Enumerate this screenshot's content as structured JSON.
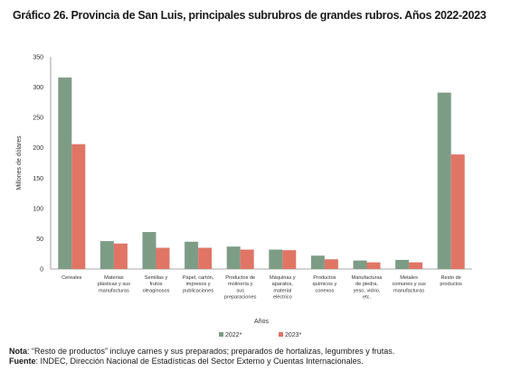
{
  "chart_data": {
    "type": "bar",
    "title": "Gráfico 26. Provincia de San Luis, principales subrubros de grandes rubros. Años 2022-2023",
    "xlabel": "Años",
    "ylabel": "Millones de dólares",
    "ylim": [
      0,
      350
    ],
    "yticks": [
      "0",
      "50",
      "100",
      "150",
      "200",
      "250",
      "300",
      "350"
    ],
    "grid": false,
    "legend_position": "bottom",
    "categories": [
      [
        "Cereales"
      ],
      [
        "Materias",
        "plásticas y sus",
        "manufacturas"
      ],
      [
        "Semillas y",
        "frutos",
        "oleaginosos"
      ],
      [
        "Papel, cartón,",
        "impresos y",
        "publicaciones"
      ],
      [
        "Productos de",
        "molinería y",
        "sus",
        "preparaciones"
      ],
      [
        "Máquinas y",
        "aparatos,",
        "material",
        "eléctrico"
      ],
      [
        "Productos",
        "químicos y",
        "conexos"
      ],
      [
        "Manufacturas",
        "de piedra,",
        "yeso, vidrio,",
        "etc."
      ],
      [
        "Metales",
        "comunes y sus",
        "manufacturas"
      ],
      [
        "Resto de",
        "productos"
      ]
    ],
    "series": [
      {
        "name": "2022*",
        "color": "#7d9c86",
        "values": [
          316,
          46,
          61,
          45,
          37,
          32,
          22,
          14,
          15,
          291
        ]
      },
      {
        "name": "2023*",
        "color": "#e07566",
        "values": [
          206,
          42,
          35,
          35,
          32,
          31,
          16,
          11,
          11,
          189
        ]
      }
    ]
  },
  "notes": {
    "nota_label": "Nota",
    "nota_text": ": “Resto de productos” incluye carnes y sus preparados; preparados de hortalizas, legumbres y frutas.",
    "fuente_label": "Fuente",
    "fuente_text": ": INDEC, Dirección Nacional de Estadísticas del Sector Externo y Cuentas Internacionales."
  }
}
